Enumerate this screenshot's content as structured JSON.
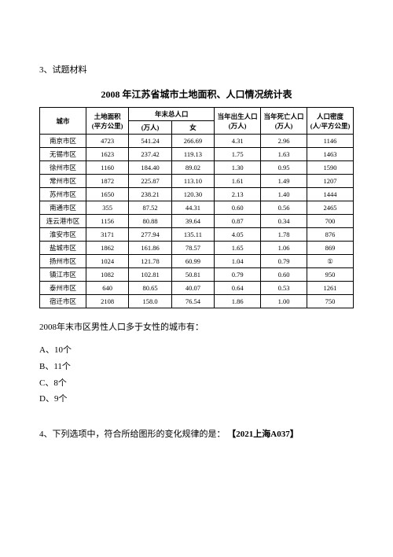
{
  "question3": {
    "header": "3、试题材料",
    "tableTitle": "2008 年江苏省城市土地面积、人口情况统计表",
    "headers": {
      "city": "城市",
      "area": "土地面积",
      "areaUnit": "(平方公里)",
      "totalPop": "年末总人口",
      "totalPopUnit": "(万人)",
      "female": "女",
      "birth": "当年出生人口",
      "birthUnit": "(万人)",
      "death": "当年死亡人口",
      "deathUnit": "(万人)",
      "density": "人口密度",
      "densityUnit": "(人/平方公里)"
    },
    "rows": [
      {
        "city": "南京市区",
        "area": "4723",
        "totalPop": "541.24",
        "female": "266.69",
        "birth": "4.31",
        "death": "2.96",
        "density": "1146"
      },
      {
        "city": "无锡市区",
        "area": "1623",
        "totalPop": "237.42",
        "female": "119.13",
        "birth": "1.75",
        "death": "1.63",
        "density": "1463"
      },
      {
        "city": "徐州市区",
        "area": "1160",
        "totalPop": "184.40",
        "female": "89.02",
        "birth": "1.30",
        "death": "0.95",
        "density": "1590"
      },
      {
        "city": "常州市区",
        "area": "1872",
        "totalPop": "225.87",
        "female": "113.10",
        "birth": "1.61",
        "death": "1.49",
        "density": "1207"
      },
      {
        "city": "苏州市区",
        "area": "1650",
        "totalPop": "238.21",
        "female": "120.30",
        "birth": "2.13",
        "death": "1.40",
        "density": "1444"
      },
      {
        "city": "南通市区",
        "area": "355",
        "totalPop": "87.52",
        "female": "44.31",
        "birth": "0.60",
        "death": "0.56",
        "density": "2465"
      },
      {
        "city": "连云港市区",
        "area": "1156",
        "totalPop": "80.88",
        "female": "39.64",
        "birth": "0.87",
        "death": "0.34",
        "density": "700"
      },
      {
        "city": "淮安市区",
        "area": "3171",
        "totalPop": "277.94",
        "female": "135.11",
        "birth": "4.05",
        "death": "1.78",
        "density": "876"
      },
      {
        "city": "盐城市区",
        "area": "1862",
        "totalPop": "161.86",
        "female": "78.57",
        "birth": "1.65",
        "death": "1.06",
        "density": "869"
      },
      {
        "city": "扬州市区",
        "area": "1024",
        "totalPop": "121.78",
        "female": "60.99",
        "birth": "1.04",
        "death": "0.79",
        "density": "①"
      },
      {
        "city": "镇江市区",
        "area": "1082",
        "totalPop": "102.81",
        "female": "50.81",
        "birth": "0.79",
        "death": "0.60",
        "density": "950"
      },
      {
        "city": "泰州市区",
        "area": "640",
        "totalPop": "80.65",
        "female": "40.07",
        "birth": "0.64",
        "death": "0.53",
        "density": "1261"
      },
      {
        "city": "宿迁市区",
        "area": "2108",
        "totalPop": "158.0",
        "female": "76.54",
        "birth": "1.86",
        "death": "1.00",
        "density": "750"
      }
    ],
    "questionText": "2008年末市区男性人口多于女性的城市有：",
    "options": {
      "A": "A、10个",
      "B": "B、11个",
      "C": "C、8个",
      "D": "D、9个"
    }
  },
  "question4": {
    "text": "4、下列选项中，符合所给图形的变化规律的是：",
    "tag": "【2021上海A037】"
  }
}
